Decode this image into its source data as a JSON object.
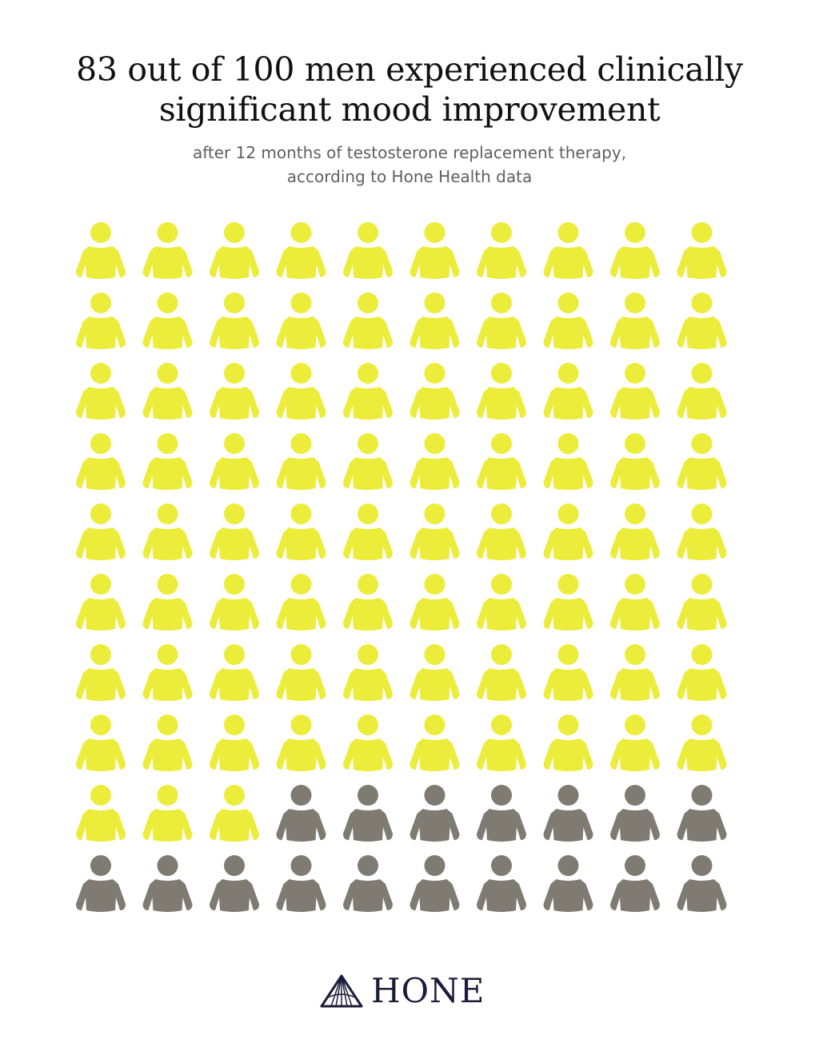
{
  "header": {
    "title_lines": [
      "83 out of 100 men experienced clinically",
      "significant mood improvement"
    ],
    "subtitle_lines": [
      "after 12 months of testosterone replacement therapy,",
      "according to Hone Health data"
    ]
  },
  "chart_data": {
    "type": "pictogram",
    "total": 100,
    "rows": 10,
    "columns": 10,
    "series": [
      {
        "name": "",
        "value": 83,
        "color": "#ecec3b"
      },
      {
        "name": "",
        "value": 17,
        "color": "#7f7a72"
      }
    ],
    "icon": "person-icon"
  },
  "brand": {
    "logo_text": "HONE",
    "logo_icon": "triangle-mark-icon",
    "color": "#1c1d3a"
  }
}
